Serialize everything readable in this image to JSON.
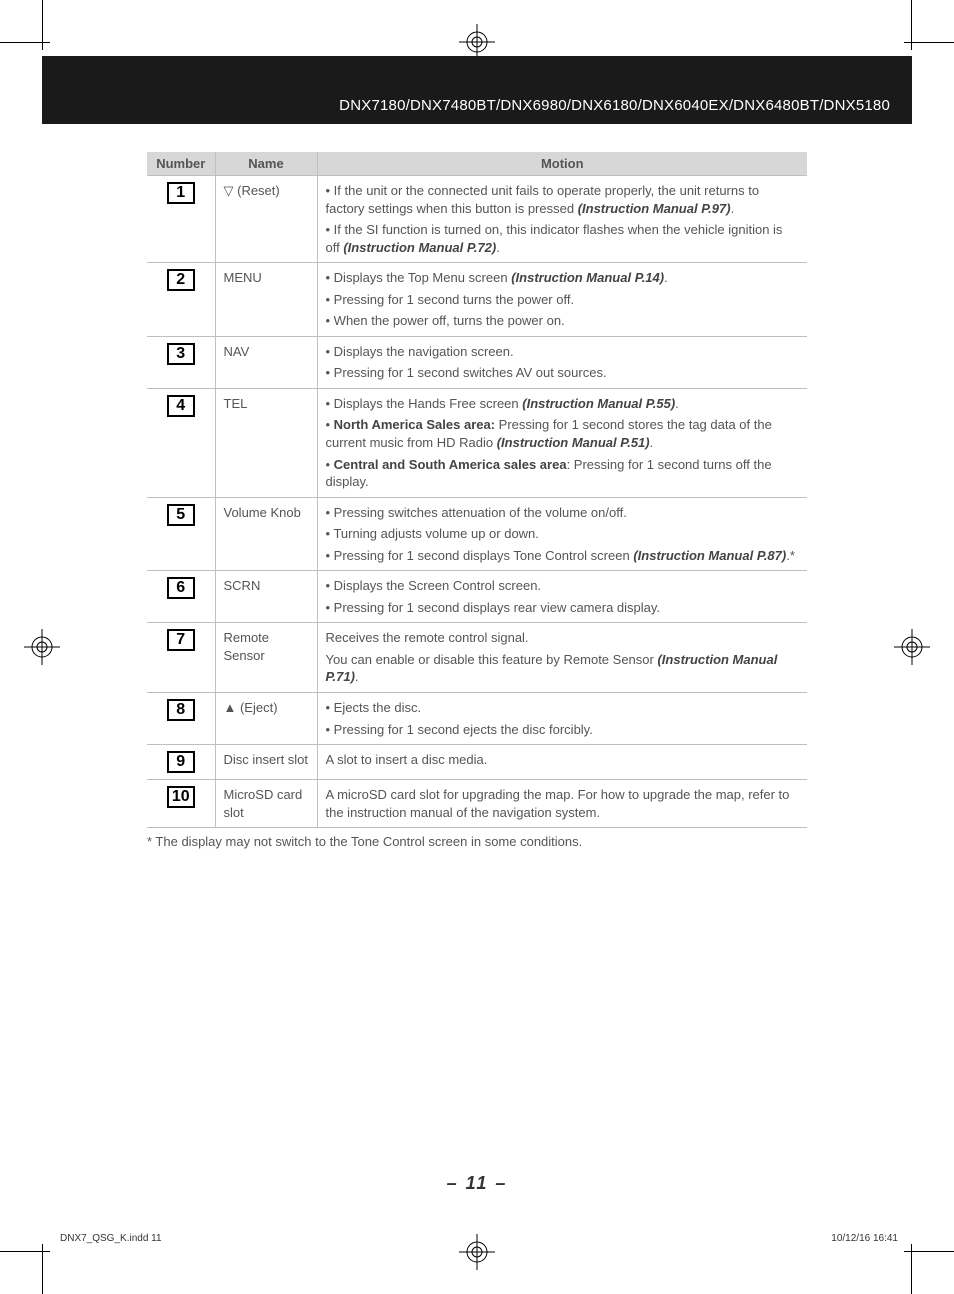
{
  "header": {
    "title": "DNX7180/DNX7480BT/DNX6980/DNX6180/DNX6040EX/DNX6480BT/DNX5180"
  },
  "table": {
    "headers": {
      "number": "Number",
      "name": "Name",
      "motion": "Motion"
    },
    "rows": [
      {
        "num": "1",
        "name": "▽ (Reset)",
        "motion": [
          {
            "bullet": true,
            "parts": [
              {
                "t": "If the unit or the connected unit fails to operate properly, the unit returns to factory settings when this button is pressed "
              },
              {
                "t": "(Instruction Manual P.97)",
                "bi": true
              },
              {
                "t": "."
              }
            ]
          },
          {
            "bullet": true,
            "parts": [
              {
                "t": "If the SI function is turned on, this indicator flashes when the vehicle ignition is off "
              },
              {
                "t": "(Instruction Manual P.72)",
                "bi": true
              },
              {
                "t": "."
              }
            ]
          }
        ]
      },
      {
        "num": "2",
        "name": "MENU",
        "motion": [
          {
            "bullet": true,
            "parts": [
              {
                "t": "Displays the Top Menu screen "
              },
              {
                "t": "(Instruction Manual P.14)",
                "bi": true
              },
              {
                "t": "."
              }
            ]
          },
          {
            "bullet": true,
            "parts": [
              {
                "t": "Pressing for 1 second turns the power off."
              }
            ]
          },
          {
            "bullet": true,
            "parts": [
              {
                "t": "When the power off, turns the power on."
              }
            ]
          }
        ]
      },
      {
        "num": "3",
        "name": "NAV",
        "motion": [
          {
            "bullet": true,
            "parts": [
              {
                "t": "Displays the navigation screen."
              }
            ]
          },
          {
            "bullet": true,
            "parts": [
              {
                "t": "Pressing for 1 second switches AV out sources."
              }
            ]
          }
        ]
      },
      {
        "num": "4",
        "name": "TEL",
        "motion": [
          {
            "bullet": true,
            "parts": [
              {
                "t": "Displays the Hands Free screen "
              },
              {
                "t": "(Instruction Manual P.55)",
                "bi": true
              },
              {
                "t": "."
              }
            ]
          },
          {
            "bullet": true,
            "parts": [
              {
                "t": "North America Sales area:",
                "b": true
              },
              {
                "t": " Pressing for 1 second stores the tag data of the current music from HD Radio "
              },
              {
                "t": "(Instruction Manual P.51)",
                "bi": true
              },
              {
                "t": "."
              }
            ]
          },
          {
            "bullet": true,
            "parts": [
              {
                "t": "Central and South America sales area",
                "b": true
              },
              {
                "t": ": Pressing for 1 second turns off the display."
              }
            ]
          }
        ]
      },
      {
        "num": "5",
        "name": "Volume Knob",
        "motion": [
          {
            "bullet": true,
            "parts": [
              {
                "t": "Pressing switches attenuation of the volume on/off."
              }
            ]
          },
          {
            "bullet": true,
            "parts": [
              {
                "t": "Turning adjusts volume up or down."
              }
            ]
          },
          {
            "bullet": true,
            "parts": [
              {
                "t": "Pressing for 1 second displays Tone Control screen "
              },
              {
                "t": "(Instruction Manual P.87)",
                "bi": true
              },
              {
                "t": ".*"
              }
            ]
          }
        ]
      },
      {
        "num": "6",
        "name": "SCRN",
        "motion": [
          {
            "bullet": true,
            "parts": [
              {
                "t": "Displays the Screen Control screen."
              }
            ]
          },
          {
            "bullet": true,
            "parts": [
              {
                "t": "Pressing for 1 second displays rear view camera display."
              }
            ]
          }
        ]
      },
      {
        "num": "7",
        "name": "Remote Sensor",
        "motion": [
          {
            "bullet": false,
            "parts": [
              {
                "t": "Receives the remote control signal."
              }
            ]
          },
          {
            "bullet": false,
            "parts": [
              {
                "t": "You can enable or disable this feature by Remote Sensor "
              },
              {
                "t": "(Instruction Manual P.71)",
                "bi": true
              },
              {
                "t": "."
              }
            ]
          }
        ]
      },
      {
        "num": "8",
        "name": "▲ (Eject)",
        "motion": [
          {
            "bullet": true,
            "parts": [
              {
                "t": "Ejects the disc."
              }
            ]
          },
          {
            "bullet": true,
            "parts": [
              {
                "t": "Pressing for 1 second ejects the disc forcibly."
              }
            ]
          }
        ]
      },
      {
        "num": "9",
        "name": "Disc insert slot",
        "motion": [
          {
            "bullet": false,
            "parts": [
              {
                "t": "A slot to insert a disc media."
              }
            ]
          }
        ]
      },
      {
        "num": "10",
        "name": "MicroSD card slot",
        "motion": [
          {
            "bullet": false,
            "parts": [
              {
                "t": "A microSD card slot for upgrading the map. For how to upgrade the map, refer to the instruction manual of the navigation system."
              }
            ]
          }
        ]
      }
    ]
  },
  "footnote": "* The display may not switch to the Tone Control screen in some conditions.",
  "pageNumber": "11",
  "footer": {
    "left": "DNX7_QSG_K.indd   11",
    "right": "10/12/16   16:41"
  }
}
